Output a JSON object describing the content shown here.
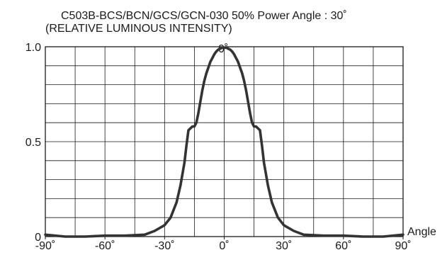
{
  "chart_data": {
    "type": "line",
    "title": "C503B-BCS/BCN/GCS/GCN-030    50% Power Angle : 30˚",
    "subtitle": "(RELATIVE LUMINOUS INTENSITY)",
    "xlabel": "Angle",
    "ylabel": "",
    "xlim": [
      -90,
      90
    ],
    "ylim": [
      0,
      1
    ],
    "x_ticks": [
      -90,
      -60,
      -30,
      0,
      30,
      60,
      90
    ],
    "x_tick_labels": [
      "-90˚",
      "-60˚",
      "-30˚",
      "0˚",
      "30˚",
      "60˚",
      "90˚"
    ],
    "y_ticks": [
      0,
      0.5,
      1.0
    ],
    "y_tick_labels": [
      "0",
      "0.5",
      "1.0"
    ],
    "top_label": "0˚",
    "grid": true,
    "series": [
      {
        "x": [
          -90,
          -80,
          -70,
          -60,
          -50,
          -40,
          -35,
          -30,
          -27,
          -24,
          -22,
          -20,
          -19,
          -18,
          -17,
          -16,
          -15,
          -14,
          -13,
          -12,
          -11,
          -10,
          -9,
          -8,
          -7,
          -6,
          -5,
          -4,
          -3,
          -2,
          -1,
          0,
          1,
          2,
          3,
          4,
          5,
          6,
          7,
          8,
          9,
          10,
          11,
          12,
          13,
          14,
          15,
          16,
          17,
          18,
          19,
          20,
          22,
          24,
          27,
          30,
          35,
          40,
          50,
          60,
          70,
          80,
          90
        ],
        "y": [
          0.01,
          0.0,
          0.0,
          0.005,
          0.005,
          0.01,
          0.03,
          0.06,
          0.1,
          0.18,
          0.27,
          0.39,
          0.48,
          0.56,
          0.57,
          0.58,
          0.58,
          0.6,
          0.65,
          0.71,
          0.77,
          0.82,
          0.86,
          0.89,
          0.92,
          0.94,
          0.96,
          0.975,
          0.985,
          0.99,
          0.995,
          0.995,
          0.995,
          0.99,
          0.985,
          0.975,
          0.96,
          0.94,
          0.92,
          0.89,
          0.86,
          0.82,
          0.77,
          0.71,
          0.65,
          0.6,
          0.58,
          0.58,
          0.57,
          0.56,
          0.48,
          0.39,
          0.27,
          0.18,
          0.1,
          0.06,
          0.03,
          0.01,
          0.005,
          0.005,
          0.0,
          0.0,
          0.01
        ]
      }
    ]
  }
}
